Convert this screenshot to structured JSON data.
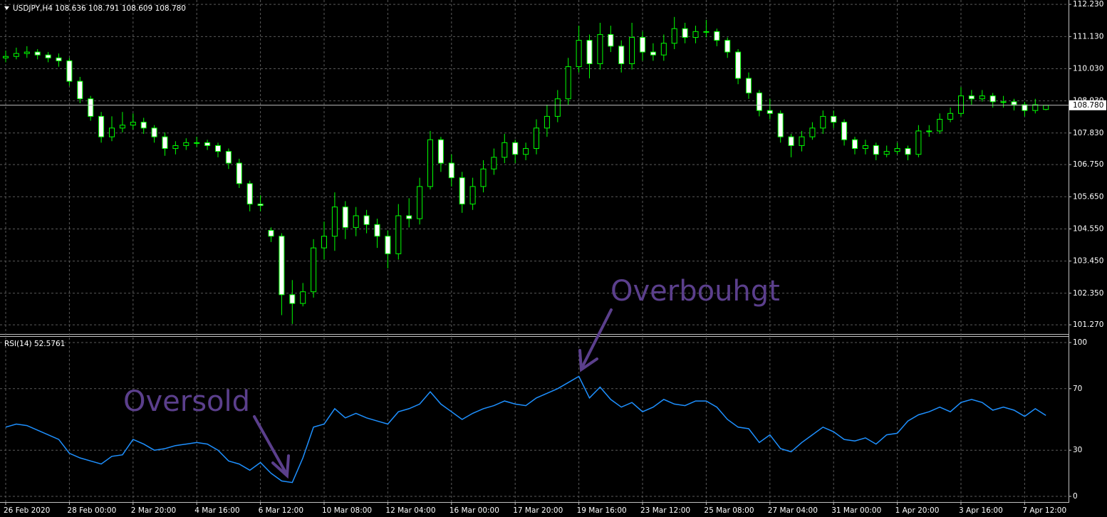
{
  "chart_data": [
    {
      "type": "candlestick",
      "title": "USDJPY,H4  108.636 108.791 108.609 108.780",
      "categories": [
        "26 Feb 2020",
        null,
        null,
        null,
        null,
        null,
        "28 Feb 00:00",
        null,
        null,
        null,
        null,
        null,
        "2 Mar 20:00",
        null,
        null,
        null,
        null,
        null,
        "4 Mar 16:00",
        null,
        null,
        null,
        null,
        null,
        "6 Mar 12:00",
        null,
        null,
        null,
        null,
        null,
        "10 Mar 08:00",
        null,
        null,
        null,
        null,
        null,
        "12 Mar 04:00",
        null,
        null,
        null,
        null,
        null,
        "16 Mar 00:00",
        null,
        null,
        null,
        null,
        null,
        "17 Mar 20:00",
        null,
        null,
        null,
        null,
        null,
        "19 Mar 16:00",
        null,
        null,
        null,
        null,
        null,
        "23 Mar 12:00",
        null,
        null,
        null,
        null,
        null,
        "25 Mar 08:00",
        null,
        null,
        null,
        null,
        null,
        "27 Mar 04:00",
        null,
        null,
        null,
        null,
        null,
        "31 Mar 00:00",
        null,
        null,
        null,
        null,
        null,
        "1 Apr 20:00",
        null,
        null,
        null,
        null,
        null,
        "3 Apr 16:00",
        null,
        null,
        null,
        null,
        null,
        "7 Apr 12:00",
        null,
        null
      ],
      "open": [
        110.4,
        110.45,
        110.55,
        110.6,
        110.5,
        110.4,
        110.3,
        109.6,
        109.0,
        108.4,
        107.7,
        108.0,
        108.1,
        108.2,
        108.0,
        107.7,
        107.3,
        107.4,
        107.5,
        107.5,
        107.4,
        107.2,
        106.8,
        106.1,
        105.4,
        104.5,
        104.3,
        102.3,
        102.0,
        102.4,
        103.9,
        104.3,
        105.3,
        104.6,
        105.0,
        104.7,
        104.3,
        103.7,
        105.0,
        104.9,
        106.0,
        107.6,
        106.8,
        106.3,
        105.4,
        106.0,
        106.6,
        107.0,
        107.5,
        107.1,
        107.3,
        108.0,
        108.4,
        109.0,
        110.1,
        111.0,
        110.2,
        111.2,
        110.8,
        110.2,
        111.1,
        110.6,
        110.5,
        110.9,
        111.4,
        111.1,
        111.3,
        111.3,
        111.0,
        110.6,
        109.7,
        109.2,
        108.6,
        108.5,
        107.7,
        107.4,
        107.7,
        108.0,
        108.4,
        108.2,
        107.6,
        107.3,
        107.4,
        107.1,
        107.2,
        107.3,
        107.1,
        107.9,
        107.9,
        108.3,
        108.5,
        109.1,
        109.0,
        109.1,
        108.9,
        108.9,
        108.8,
        108.6,
        108.636
      ],
      "high": [
        110.65,
        110.75,
        110.8,
        110.7,
        110.6,
        110.55,
        110.4,
        109.75,
        109.1,
        108.55,
        108.4,
        108.55,
        108.5,
        108.35,
        108.1,
        107.85,
        107.55,
        107.65,
        107.7,
        107.6,
        107.5,
        107.3,
        106.95,
        106.2,
        105.7,
        104.6,
        104.4,
        102.8,
        102.7,
        104.2,
        104.8,
        105.8,
        105.5,
        105.3,
        105.2,
        104.9,
        104.5,
        105.4,
        105.6,
        106.3,
        107.9,
        107.7,
        107.1,
        106.5,
        106.3,
        106.9,
        107.3,
        107.8,
        107.6,
        107.5,
        108.3,
        108.8,
        109.3,
        110.4,
        111.5,
        111.2,
        111.6,
        111.5,
        111.0,
        111.6,
        111.3,
        110.9,
        111.2,
        111.8,
        111.6,
        111.5,
        111.7,
        111.4,
        111.1,
        110.7,
        109.9,
        109.3,
        109.0,
        108.6,
        107.8,
        107.9,
        108.2,
        108.6,
        108.6,
        108.3,
        107.7,
        107.6,
        107.5,
        107.4,
        107.5,
        107.4,
        108.1,
        108.1,
        108.5,
        108.7,
        109.4,
        109.3,
        109.3,
        109.2,
        109.1,
        109.0,
        108.9,
        109.0,
        108.791
      ],
      "low": [
        110.25,
        110.35,
        110.4,
        110.35,
        110.25,
        110.1,
        109.45,
        108.85,
        108.25,
        107.5,
        107.55,
        107.85,
        107.95,
        107.8,
        107.5,
        107.05,
        107.1,
        107.25,
        107.35,
        107.25,
        107.0,
        106.6,
        105.95,
        105.15,
        105.15,
        104.1,
        101.6,
        101.3,
        101.9,
        102.2,
        103.5,
        103.8,
        104.2,
        104.3,
        104.4,
        103.9,
        103.2,
        103.5,
        104.6,
        104.7,
        105.9,
        106.5,
        106.0,
        105.1,
        105.2,
        105.8,
        106.4,
        106.8,
        106.8,
        106.9,
        107.1,
        107.7,
        108.2,
        108.8,
        109.9,
        109.7,
        110.0,
        110.6,
        109.9,
        110.0,
        110.3,
        110.3,
        110.3,
        110.7,
        110.9,
        110.9,
        111.1,
        110.8,
        110.4,
        109.5,
        109.0,
        108.4,
        108.3,
        107.5,
        107.0,
        107.2,
        107.6,
        107.8,
        108.0,
        107.4,
        107.1,
        107.1,
        106.9,
        107.0,
        107.1,
        106.9,
        107.0,
        107.7,
        107.8,
        108.2,
        108.4,
        108.8,
        108.9,
        108.7,
        108.7,
        108.6,
        108.4,
        108.5,
        108.609
      ],
      "close": [
        110.45,
        110.55,
        110.6,
        110.5,
        110.4,
        110.3,
        109.6,
        109.0,
        108.4,
        107.7,
        108.0,
        108.1,
        108.2,
        108.0,
        107.7,
        107.3,
        107.4,
        107.5,
        107.5,
        107.4,
        107.2,
        106.8,
        106.1,
        105.4,
        105.35,
        104.3,
        102.3,
        102.0,
        102.4,
        103.9,
        104.3,
        105.3,
        104.6,
        105.0,
        104.7,
        104.3,
        103.7,
        105.0,
        104.9,
        106.0,
        107.6,
        106.8,
        106.3,
        105.4,
        106.0,
        106.6,
        107.0,
        107.5,
        107.1,
        107.3,
        108.0,
        108.4,
        109.0,
        110.1,
        111.0,
        110.2,
        111.2,
        110.8,
        110.2,
        111.1,
        110.6,
        110.5,
        110.9,
        111.4,
        111.1,
        111.3,
        111.3,
        111.0,
        110.6,
        109.7,
        109.2,
        108.6,
        108.5,
        107.7,
        107.4,
        107.7,
        108.0,
        108.4,
        108.2,
        107.6,
        107.3,
        107.4,
        107.1,
        107.2,
        107.3,
        107.1,
        107.9,
        107.9,
        108.3,
        108.5,
        109.1,
        109.0,
        109.1,
        108.9,
        108.9,
        108.8,
        108.6,
        108.8,
        108.78
      ],
      "wick_color": "#00ff00",
      "up_fill": "#000000",
      "down_fill": "#ffffff",
      "ylim": [
        100.98,
        112.38
      ],
      "yticks": [
        {
          "value": 112.23,
          "label": "112.230"
        },
        {
          "value": 111.13,
          "label": "111.130"
        },
        {
          "value": 110.03,
          "label": "110.030"
        },
        {
          "value": 108.93,
          "label": "108.930"
        },
        {
          "value": 107.83,
          "label": "107.830"
        },
        {
          "value": 106.75,
          "label": "106.750"
        },
        {
          "value": 105.65,
          "label": "105.650"
        },
        {
          "value": 104.55,
          "label": "104.550"
        },
        {
          "value": 103.45,
          "label": "103.450"
        },
        {
          "value": 102.35,
          "label": "102.350"
        },
        {
          "value": 101.27,
          "label": "101.270"
        }
      ],
      "last_price": {
        "value": 108.78,
        "label": "108.780"
      },
      "grid": true
    },
    {
      "type": "line",
      "title": "RSI(14) 52.5761",
      "color": "#1e90ff",
      "values": [
        45,
        47,
        46,
        43,
        40,
        37,
        28,
        25,
        23,
        21,
        26,
        27,
        37,
        34,
        30,
        31,
        33,
        34,
        35,
        34,
        30,
        23,
        21,
        17,
        22,
        15,
        10,
        9,
        25,
        45,
        47,
        57,
        51,
        54,
        51,
        49,
        47,
        55,
        57,
        60,
        68,
        60,
        55,
        50,
        54,
        57,
        59,
        62,
        60,
        59,
        64,
        67,
        70,
        74,
        78,
        64,
        71,
        63,
        58,
        61,
        55,
        58,
        63,
        60,
        59,
        62,
        62,
        58,
        50,
        45,
        44,
        35,
        40,
        31,
        29,
        35,
        40,
        45,
        42,
        37,
        36,
        38,
        34,
        40,
        41,
        49,
        53,
        55,
        58,
        55,
        61,
        63,
        61,
        56,
        58,
        56,
        52,
        57,
        52.5761
      ],
      "ylim": [
        -3.7,
        103.7
      ],
      "yticks": [
        100,
        70,
        30,
        0
      ],
      "annotations": [
        "Oversold",
        "Overbouhgt"
      ],
      "grid": true
    }
  ]
}
